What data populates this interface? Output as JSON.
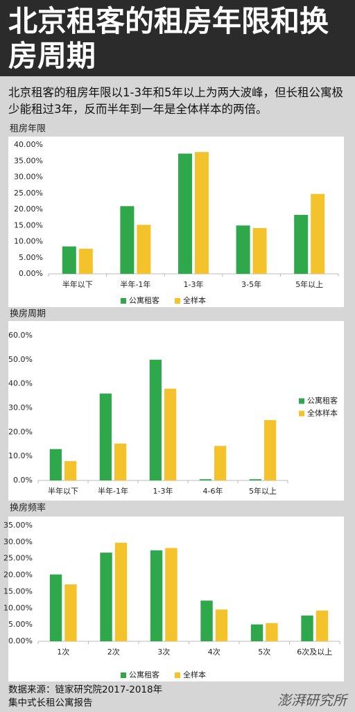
{
  "title": "北京租客的租房年限和换房周期",
  "subtitle": "北京租客的租房年限以1-3年和5年以上为两大波峰，但长租公寓极少能租过3年，反而半年到一年是全体样本的两倍。",
  "source": "数据来源：链家研究院2017-2018年集中式长租公寓报告",
  "brand": "澎湃研究所",
  "chart_data": [
    {
      "type": "bar",
      "title": "租房年限",
      "legend": "bottom",
      "categories": [
        "半年以下",
        "半年-1年",
        "1-3年",
        "3-5年",
        "5年以上"
      ],
      "series": [
        {
          "name": "公寓租客",
          "color": "#2ea84a",
          "values": [
            8.5,
            21.0,
            37.3,
            15.0,
            18.3
          ]
        },
        {
          "name": "全样本",
          "color": "#f4c22b",
          "values": [
            7.8,
            15.2,
            37.8,
            14.2,
            24.8
          ]
        }
      ],
      "ylim": [
        0,
        40
      ],
      "yticks": [
        {
          "value": 0,
          "label": "0.00%"
        },
        {
          "value": 5,
          "label": "5.00%"
        },
        {
          "value": 10,
          "label": "10.00%"
        },
        {
          "value": 15,
          "label": "15.00%"
        },
        {
          "value": 20,
          "label": "20.00%"
        },
        {
          "value": 25,
          "label": "25.00%"
        },
        {
          "value": 30,
          "label": "30.00%"
        },
        {
          "value": 35,
          "label": "35.00%"
        },
        {
          "value": 40,
          "label": "40.00%"
        }
      ]
    },
    {
      "type": "bar",
      "title": "换房周期",
      "legend": "right",
      "categories": [
        "半年以下",
        "半年-1年",
        "1-3年",
        "4-6年",
        "5年以上"
      ],
      "series": [
        {
          "name": "公寓租客",
          "color": "#2ea84a",
          "values": [
            13.0,
            36.0,
            50.0,
            0.5,
            0.5
          ]
        },
        {
          "name": "全体样本",
          "color": "#f4c22b",
          "values": [
            8.0,
            15.3,
            38.0,
            14.3,
            25.0
          ]
        }
      ],
      "ylim": [
        0,
        60
      ],
      "yticks": [
        {
          "value": 0,
          "label": "0.0%"
        },
        {
          "value": 10,
          "label": "10.0%"
        },
        {
          "value": 20,
          "label": "20.0%"
        },
        {
          "value": 30,
          "label": "30.0%"
        },
        {
          "value": 40,
          "label": "40.0%"
        },
        {
          "value": 50,
          "label": "50.0%"
        },
        {
          "value": 60,
          "label": "60.0%"
        }
      ]
    },
    {
      "type": "bar",
      "title": "换房频率",
      "legend": "bottom",
      "categories": [
        "1次",
        "2次",
        "3次",
        "4次",
        "5次",
        "6次及以上"
      ],
      "series": [
        {
          "name": "公寓租客",
          "color": "#2ea84a",
          "values": [
            20.2,
            26.8,
            27.5,
            12.3,
            5.1,
            7.8
          ]
        },
        {
          "name": "全样本",
          "color": "#f4c22b",
          "values": [
            17.2,
            29.8,
            28.2,
            9.6,
            5.5,
            9.3
          ]
        }
      ],
      "ylim": [
        0,
        35
      ],
      "yticks": [
        {
          "value": 0,
          "label": "0.00%"
        },
        {
          "value": 5,
          "label": "5.00%"
        },
        {
          "value": 10,
          "label": "10.00%"
        },
        {
          "value": 15,
          "label": "15.00%"
        },
        {
          "value": 20,
          "label": "20.00%"
        },
        {
          "value": 25,
          "label": "25.00%"
        },
        {
          "value": 30,
          "label": "30.00%"
        },
        {
          "value": 35,
          "label": "35.00%"
        }
      ]
    }
  ]
}
